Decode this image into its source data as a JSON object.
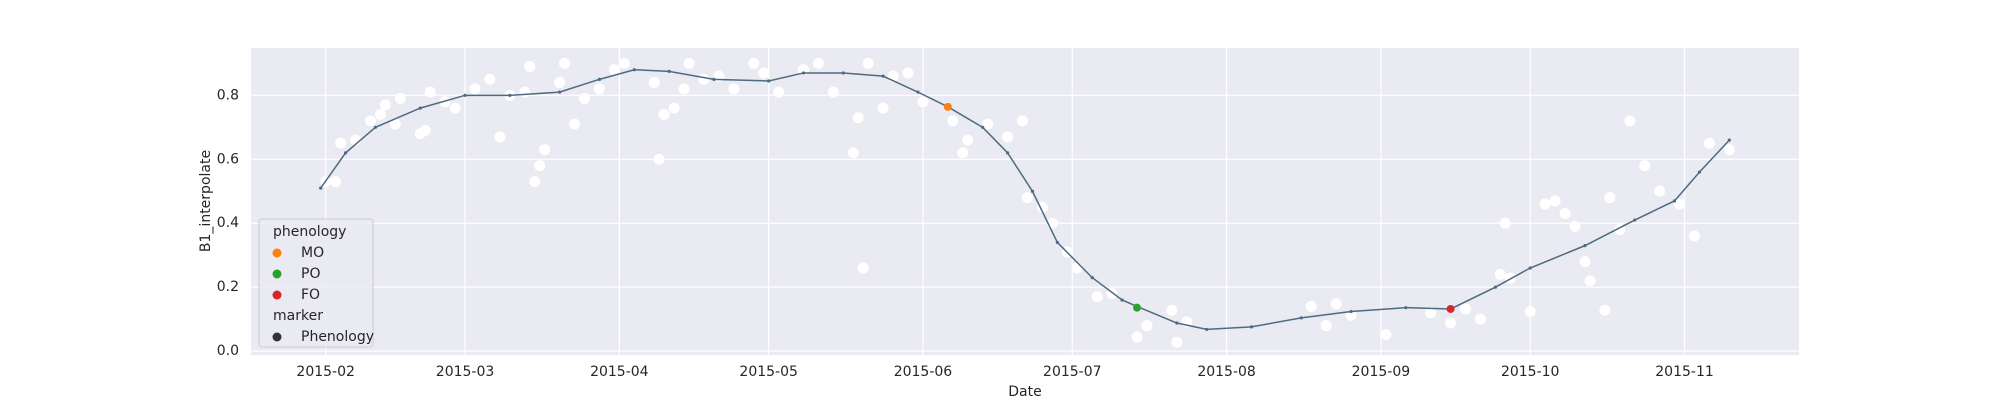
{
  "chart_data": {
    "type": "line",
    "x_label": "Date",
    "y_label": "B1_interpolate",
    "xlim": [
      17,
      328
    ],
    "ylim": [
      -0.012,
      0.948
    ],
    "xticks": [
      {
        "value": 32,
        "label": "2015-02"
      },
      {
        "value": 60,
        "label": "2015-03"
      },
      {
        "value": 91,
        "label": "2015-04"
      },
      {
        "value": 121,
        "label": "2015-05"
      },
      {
        "value": 152,
        "label": "2015-06"
      },
      {
        "value": 182,
        "label": "2015-07"
      },
      {
        "value": 213,
        "label": "2015-08"
      },
      {
        "value": 244,
        "label": "2015-09"
      },
      {
        "value": 274,
        "label": "2015-10"
      },
      {
        "value": 305,
        "label": "2015-11"
      }
    ],
    "yticks": [
      {
        "value": 0,
        "label": "0.0"
      },
      0.2,
      0.4,
      0.6,
      0.8
    ],
    "grid": true,
    "line": {
      "color": "#4d6b80",
      "x": [
        31,
        36,
        42,
        51,
        60,
        69,
        79,
        87,
        94,
        101,
        110,
        121,
        128,
        136,
        144,
        151,
        157,
        164,
        169,
        174,
        179,
        186,
        192,
        195,
        203,
        209,
        218,
        228,
        238,
        249,
        258,
        267,
        274,
        285,
        295,
        303,
        308,
        314
      ],
      "values": [
        0.51,
        0.62,
        0.7,
        0.76,
        0.8,
        0.8,
        0.81,
        0.85,
        0.88,
        0.875,
        0.85,
        0.845,
        0.87,
        0.87,
        0.86,
        0.81,
        0.764,
        0.7,
        0.62,
        0.5,
        0.34,
        0.23,
        0.16,
        0.14,
        0.088,
        0.068,
        0.076,
        0.104,
        0.124,
        0.136,
        0.132,
        0.2,
        0.26,
        0.33,
        0.41,
        0.47,
        0.56,
        0.66
      ]
    },
    "points": {
      "color": "#ffffff",
      "x": [
        32,
        34,
        35,
        38,
        41,
        43,
        44,
        46,
        47,
        51,
        52,
        53,
        56,
        58,
        62,
        65,
        67,
        69,
        72,
        73,
        74,
        75,
        76,
        79,
        80,
        82,
        84,
        87,
        90,
        92,
        98,
        99,
        100,
        102,
        104,
        105,
        108,
        111,
        114,
        118,
        120,
        123,
        128,
        131,
        134,
        138,
        139,
        140,
        141,
        144,
        146,
        149,
        152,
        158,
        160,
        161,
        165,
        169,
        172,
        173,
        176,
        178,
        181,
        183,
        187,
        190,
        195,
        197,
        202,
        203,
        205,
        230,
        233,
        235,
        238,
        245,
        254,
        258,
        261,
        264,
        268,
        269,
        270,
        274,
        277,
        279,
        281,
        283,
        285,
        286,
        289,
        290,
        292,
        294,
        297,
        300,
        304,
        307,
        310,
        314
      ],
      "values": [
        0.53,
        0.53,
        0.65,
        0.66,
        0.72,
        0.74,
        0.77,
        0.71,
        0.79,
        0.68,
        0.69,
        0.81,
        0.78,
        0.76,
        0.82,
        0.85,
        0.67,
        0.8,
        0.81,
        0.89,
        0.53,
        0.58,
        0.63,
        0.84,
        0.9,
        0.71,
        0.79,
        0.82,
        0.88,
        0.9,
        0.84,
        0.6,
        0.74,
        0.76,
        0.82,
        0.9,
        0.85,
        0.86,
        0.82,
        0.9,
        0.87,
        0.81,
        0.88,
        0.9,
        0.81,
        0.62,
        0.73,
        0.26,
        0.9,
        0.76,
        0.86,
        0.87,
        0.78,
        0.72,
        0.62,
        0.66,
        0.71,
        0.67,
        0.72,
        0.48,
        0.45,
        0.4,
        0.31,
        0.26,
        0.17,
        0.18,
        0.044,
        0.08,
        0.128,
        0.028,
        0.092,
        0.14,
        0.08,
        0.148,
        0.112,
        0.052,
        0.12,
        0.088,
        0.132,
        0.1,
        0.24,
        0.4,
        0.228,
        0.124,
        0.46,
        0.47,
        0.43,
        0.39,
        0.28,
        0.22,
        0.128,
        0.48,
        0.38,
        0.72,
        0.58,
        0.5,
        0.46,
        0.36,
        0.65,
        0.63
      ]
    },
    "phenology": {
      "title": "phenology",
      "series": [
        {
          "name": "MO",
          "color": "#ff7f0e",
          "x": 157,
          "value": 0.764
        },
        {
          "name": "PO",
          "color": "#2ca02c",
          "x": 195,
          "value": 0.136
        },
        {
          "name": "FO",
          "color": "#d62728",
          "x": 258,
          "value": 0.132
        }
      ]
    },
    "marker": {
      "title": "marker",
      "name": "Phenology",
      "color": "#333333"
    }
  }
}
